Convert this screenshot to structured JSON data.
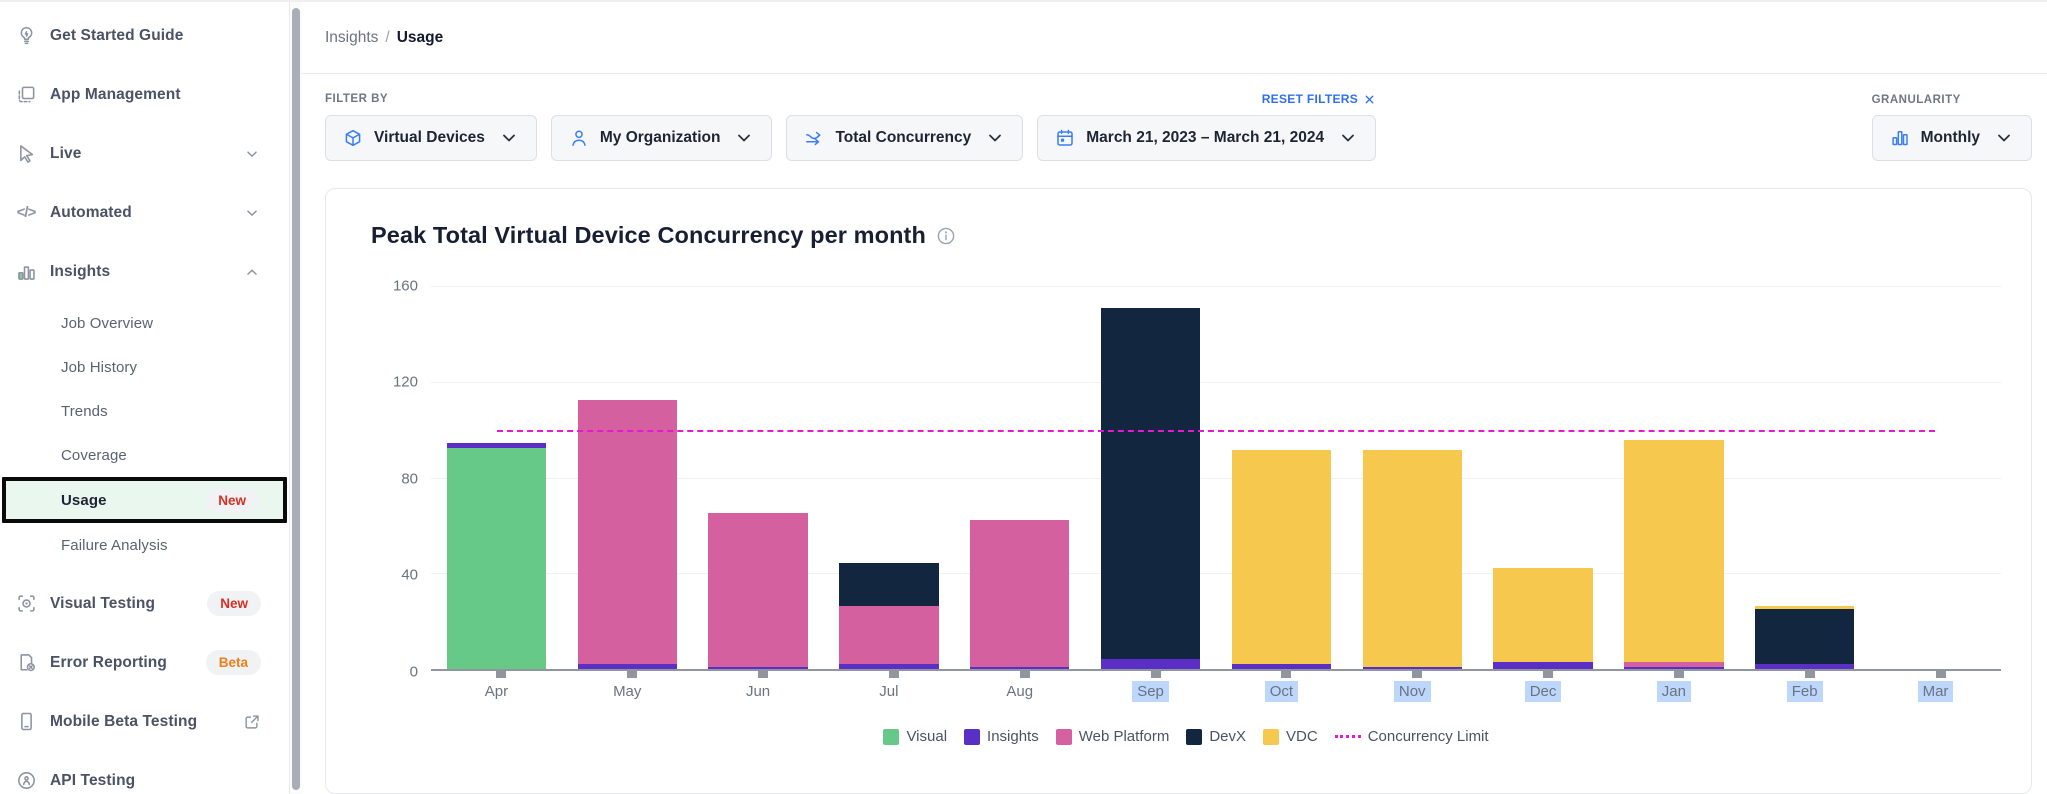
{
  "sidebar": {
    "items": [
      {
        "label": "Get Started Guide",
        "icon": "lightbulb",
        "level": "top"
      },
      {
        "label": "App Management",
        "icon": "app-management",
        "level": "top"
      },
      {
        "label": "Live",
        "icon": "cursor",
        "level": "top",
        "trailing": "chevron-down"
      },
      {
        "label": "Automated",
        "icon": "code",
        "level": "top",
        "trailing": "chevron-down"
      },
      {
        "label": "Insights",
        "icon": "insights-chart",
        "level": "top",
        "trailing": "chevron-up",
        "expanded": true
      },
      {
        "label": "Job Overview",
        "level": "sub"
      },
      {
        "label": "Job History",
        "level": "sub"
      },
      {
        "label": "Trends",
        "level": "sub"
      },
      {
        "label": "Coverage",
        "level": "sub"
      },
      {
        "label": "Usage",
        "level": "sub",
        "selected": true,
        "badge": {
          "text": "New",
          "color": "#d93025"
        }
      },
      {
        "label": "Failure Analysis",
        "level": "sub",
        "gap_after": true
      },
      {
        "label": "Visual Testing",
        "icon": "visual-testing",
        "level": "top",
        "badge": {
          "text": "New",
          "color": "#d93025"
        }
      },
      {
        "label": "Error Reporting",
        "icon": "error-reporting",
        "level": "top",
        "badge": {
          "text": "Beta",
          "color": "#ee7e19"
        }
      },
      {
        "label": "Mobile Beta Testing",
        "icon": "mobile-phone",
        "level": "top",
        "trailing": "external-link"
      },
      {
        "label": "API Testing",
        "icon": "api-testing",
        "level": "top"
      }
    ]
  },
  "breadcrumb": {
    "section": "Insights",
    "separator": "/",
    "page": "Usage"
  },
  "filter_bar": {
    "filter_by_label": "FILTER BY",
    "reset_label": "RESET FILTERS",
    "granularity_label": "GRANULARITY",
    "filters": [
      {
        "label": "Virtual Devices",
        "icon": "cube"
      },
      {
        "label": "My Organization",
        "icon": "person"
      },
      {
        "label": "Total Concurrency",
        "icon": "concurrency-arrows"
      },
      {
        "label": "March 21, 2023 – March 21, 2024",
        "icon": "calendar"
      }
    ],
    "granularity": {
      "label": "Monthly",
      "icon": "bar-chart"
    }
  },
  "chart_data": {
    "type": "bar",
    "stacked": true,
    "title": "Peak Total Virtual Device Concurrency per month",
    "ylim": [
      0,
      160
    ],
    "y_ticks": [
      0,
      40,
      80,
      120,
      160
    ],
    "grid": true,
    "legend_position": "bottom",
    "categories": [
      {
        "label": "Apr",
        "highlighted": false
      },
      {
        "label": "May",
        "highlighted": false
      },
      {
        "label": "Jun",
        "highlighted": false
      },
      {
        "label": "Jul",
        "highlighted": false
      },
      {
        "label": "Aug",
        "highlighted": false
      },
      {
        "label": "Sep",
        "highlighted": true
      },
      {
        "label": "Oct",
        "highlighted": true
      },
      {
        "label": "Nov",
        "highlighted": true
      },
      {
        "label": "Dec",
        "highlighted": true
      },
      {
        "label": "Jan",
        "highlighted": true
      },
      {
        "label": "Feb",
        "highlighted": true
      },
      {
        "label": "Mar",
        "highlighted": true
      }
    ],
    "highlight_color": "#bcd7fb",
    "series": [
      {
        "name": "Visual",
        "color": "#66c987",
        "values": [
          92,
          0,
          0,
          0,
          0,
          0,
          0,
          0,
          0,
          0,
          0,
          0
        ]
      },
      {
        "name": "Insights",
        "color": "#5a2fc5",
        "values": [
          2,
          2,
          1,
          2,
          1,
          4,
          2,
          1,
          3,
          1,
          2,
          0
        ]
      },
      {
        "name": "Web Platform",
        "color": "#d4609f",
        "values": [
          0,
          110,
          64,
          24,
          61,
          0,
          0,
          0,
          0,
          2,
          0,
          0
        ]
      },
      {
        "name": "DevX",
        "color": "#13263f",
        "values": [
          0,
          0,
          0,
          18,
          0,
          146,
          0,
          0,
          0,
          0,
          23,
          0
        ]
      },
      {
        "name": "VDC",
        "color": "#f6c94e",
        "values": [
          0,
          0,
          0,
          0,
          0,
          0,
          89,
          90,
          39,
          92,
          1,
          0
        ]
      }
    ],
    "totals": [
      94,
      112,
      65,
      44,
      62,
      150,
      91,
      91,
      42,
      95,
      26,
      0
    ],
    "limit": {
      "name": "Concurrency Limit",
      "value": 100,
      "color": "#e619d0"
    }
  }
}
